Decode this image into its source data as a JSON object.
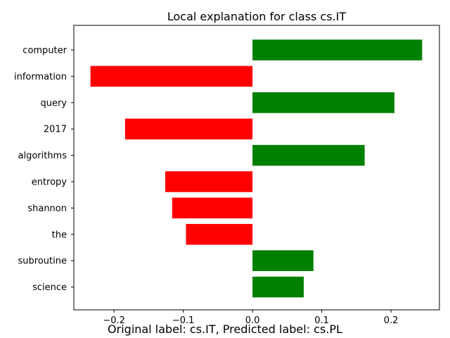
{
  "chart_data": {
    "type": "bar",
    "orientation": "horizontal",
    "title": "Local explanation for class cs.IT",
    "xlabel": "",
    "ylabel": "",
    "categories": [
      "computer",
      "information",
      "query",
      "2017",
      "algorithms",
      "entropy",
      "shannon",
      "the",
      "subroutine",
      "science"
    ],
    "values": [
      0.245,
      -0.234,
      0.205,
      -0.184,
      0.162,
      -0.126,
      -0.116,
      -0.096,
      0.088,
      0.074
    ],
    "xlim": [
      -0.258,
      0.27
    ],
    "xticks": [
      -0.2,
      -0.1,
      0.0,
      0.1,
      0.2
    ],
    "xtick_labels": [
      "−0.2",
      "−0.1",
      "0.0",
      "0.1",
      "0.2"
    ],
    "grid": false,
    "colors": {
      "positive": "#008000",
      "negative": "#ff0000",
      "axis": "#000000"
    }
  },
  "caption": "Original label: cs.IT, Predicted label: cs.PL"
}
